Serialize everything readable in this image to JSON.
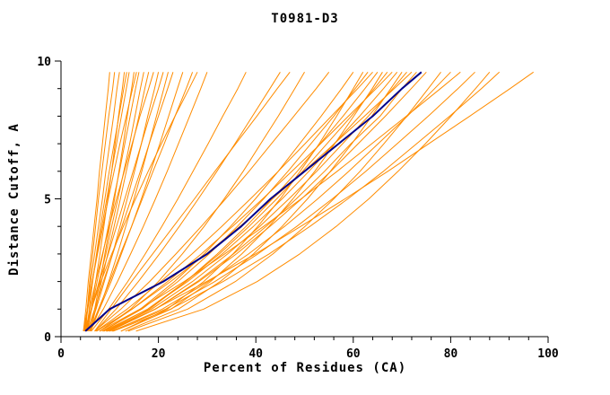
{
  "chart_data": {
    "type": "line",
    "title": "T0981-D3",
    "xlabel": "Percent of Residues (CA)",
    "ylabel": "Distance Cutoff, A",
    "xlim": [
      0,
      100
    ],
    "ylim": [
      0,
      10
    ],
    "x_ticks": [
      0,
      20,
      40,
      60,
      80,
      100
    ],
    "y_ticks": [
      0,
      5,
      10
    ],
    "x_minor_step": 4,
    "y_minor_step": 1,
    "grid": false,
    "legend": "none",
    "colors": {
      "model": "#ff8c00",
      "highlight": "#00008b",
      "axis": "#000000",
      "background": "#ffffff"
    },
    "y_grid": [
      0.2,
      1,
      2,
      3,
      4,
      5,
      6,
      7,
      8,
      9,
      9.6
    ],
    "highlight_series": {
      "name": "highlighted-model",
      "x": [
        5,
        10,
        21,
        30,
        37,
        43,
        50,
        57,
        64,
        70,
        74
      ]
    },
    "series": [
      {
        "x": [
          4.6,
          5.1,
          5.6,
          6.2,
          6.8,
          7.4,
          7.9,
          8.5,
          9.1,
          9.7,
          10
        ]
      },
      {
        "x": [
          5.1,
          5.4,
          5.9,
          6.5,
          7.1,
          7.7,
          8.4,
          9.1,
          9.8,
          10.6,
          11
        ]
      },
      {
        "x": [
          4.8,
          5.4,
          6.1,
          6.9,
          7.7,
          8.5,
          9.2,
          10,
          10.8,
          11.5,
          12
        ]
      },
      {
        "x": [
          5.3,
          6.2,
          7.1,
          8,
          8.8,
          9.6,
          10.4,
          11.1,
          11.8,
          12.6,
          13
        ]
      },
      {
        "x": [
          5.3,
          5.8,
          6.5,
          7.3,
          8.1,
          9,
          9.9,
          10.9,
          11.9,
          12.9,
          13.5
        ]
      },
      {
        "x": [
          4.6,
          5.4,
          6.4,
          7.4,
          8.4,
          9.4,
          10.4,
          11.4,
          12.4,
          13.4,
          14
        ]
      },
      {
        "x": [
          5.9,
          6.9,
          8,
          9,
          10,
          11,
          11.9,
          12.8,
          13.6,
          14.5,
          15
        ]
      },
      {
        "x": [
          4.9,
          5.5,
          6.4,
          7.5,
          8.6,
          9.7,
          10.9,
          12.1,
          13.4,
          14.7,
          15.5
        ]
      },
      {
        "x": [
          5.4,
          6.3,
          7.4,
          8.6,
          9.7,
          10.8,
          12,
          13.1,
          14.2,
          15.3,
          16
        ]
      },
      {
        "x": [
          5,
          6.3,
          7.8,
          9.2,
          10.4,
          11.7,
          12.9,
          14.1,
          15.2,
          16.3,
          17
        ]
      },
      {
        "x": [
          6.1,
          7.1,
          8.3,
          9.6,
          10.9,
          12.2,
          13.4,
          14.7,
          16,
          17.2,
          18
        ]
      },
      {
        "x": [
          5.1,
          5.9,
          7.1,
          8.5,
          9.9,
          11.4,
          13,
          14.6,
          16.2,
          18,
          19
        ]
      },
      {
        "x": [
          5.6,
          7.2,
          8.9,
          10.6,
          12.1,
          13.6,
          15.1,
          16.5,
          17.8,
          19.2,
          20
        ]
      },
      {
        "x": [
          4.8,
          6.2,
          7.9,
          9.7,
          11.4,
          13.1,
          14.8,
          16.5,
          18.2,
          20,
          21
        ]
      },
      {
        "x": [
          6.1,
          7.9,
          9.8,
          11.6,
          13.3,
          15,
          16.6,
          18.1,
          19.6,
          21.1,
          22
        ]
      },
      {
        "x": [
          5.4,
          6.9,
          8.7,
          10.6,
          12.5,
          14.4,
          16.3,
          18.1,
          20,
          21.9,
          23
        ]
      },
      {
        "x": [
          5.8,
          7.9,
          10.3,
          12.4,
          14.5,
          16.5,
          18.4,
          20.3,
          22.1,
          23.9,
          25
        ]
      },
      {
        "x": [
          5.9,
          7.7,
          10,
          12.2,
          14.5,
          16.7,
          18.9,
          21.2,
          23.4,
          25.7,
          27
        ]
      },
      {
        "x": [
          5.9,
          8.7,
          11.6,
          14.3,
          16.9,
          19.4,
          21.8,
          24.1,
          26.4,
          28.7,
          30
        ]
      },
      {
        "x": [
          4.8,
          6.2,
          8.2,
          10.4,
          12.8,
          15.3,
          17.9,
          20.6,
          23.4,
          26.3,
          28
        ]
      },
      {
        "x": [
          6.2,
          9.8,
          13.7,
          17.3,
          20.7,
          24,
          27.1,
          30.2,
          33.2,
          36.3,
          38
        ]
      },
      {
        "x": [
          7,
          11.3,
          15.9,
          20.2,
          24.3,
          28.2,
          32,
          35.7,
          39.3,
          42.9,
          45
        ]
      },
      {
        "x": [
          8,
          14.3,
          20,
          24.9,
          29.4,
          33.5,
          37.4,
          41,
          44.6,
          48,
          50
        ]
      },
      {
        "x": [
          6.9,
          10.3,
          14.5,
          18.8,
          23.1,
          27.4,
          31.6,
          35.9,
          40.2,
          44.4,
          47
        ]
      },
      {
        "x": [
          6.9,
          12.3,
          18.2,
          23.6,
          28.8,
          33.8,
          38.6,
          43.2,
          47.8,
          52.4,
          55
        ]
      },
      {
        "x": [
          8.7,
          16.3,
          23.3,
          29.4,
          34.8,
          39.9,
          44.6,
          49,
          53.4,
          57.6,
          60
        ]
      },
      {
        "x": [
          12.3,
          21.8,
          29.3,
          35.3,
          40.4,
          45,
          49.1,
          53,
          56.6,
          60,
          62
        ]
      },
      {
        "x": [
          8.4,
          16.6,
          24,
          30.4,
          36.2,
          41.6,
          46.6,
          51.3,
          56,
          60.4,
          63
        ]
      },
      {
        "x": [
          7.2,
          13.6,
          20.5,
          26.9,
          33,
          38.9,
          44.6,
          50.1,
          55.5,
          60.9,
          64
        ]
      },
      {
        "x": [
          10,
          18.2,
          25.6,
          32.1,
          38,
          43.4,
          48.5,
          53.2,
          57.9,
          62.4,
          65
        ]
      },
      {
        "x": [
          12.3,
          22.6,
          30.7,
          37.1,
          42.7,
          47.6,
          52.1,
          56.2,
          60.1,
          63.9,
          66
        ]
      },
      {
        "x": [
          9.2,
          17.8,
          25.6,
          32.5,
          38.6,
          44.3,
          49.6,
          54.6,
          59.6,
          64.3,
          67
        ]
      },
      {
        "x": [
          7.9,
          14.6,
          21.9,
          28.8,
          35.2,
          41.4,
          47.4,
          53.3,
          59,
          64.7,
          68
        ]
      },
      {
        "x": [
          8.8,
          17.8,
          26,
          33.1,
          39.5,
          45.4,
          50.9,
          56.1,
          61.3,
          66.2,
          69
        ]
      },
      {
        "x": [
          13.2,
          24.1,
          32.7,
          39.5,
          45.4,
          50.6,
          55.3,
          59.7,
          63.8,
          67.7,
          70
        ]
      },
      {
        "x": [
          9.4,
          18.6,
          27,
          34.2,
          40.8,
          46.8,
          52.5,
          57.8,
          63.1,
          68.1,
          71
        ]
      },
      {
        "x": [
          7.3,
          14.6,
          22.5,
          29.8,
          36.7,
          43.4,
          49.9,
          56.1,
          62.3,
          68.4,
          72
        ]
      },
      {
        "x": [
          10,
          19.4,
          28,
          35.4,
          42.1,
          48.3,
          54.1,
          59.5,
          65.5,
          70,
          73
        ]
      },
      {
        "x": [
          9.7,
          19.4,
          28.3,
          36,
          42.9,
          49.4,
          55.4,
          61,
          66.6,
          71.9,
          75
        ]
      },
      {
        "x": [
          13.8,
          26,
          35.8,
          43.5,
          50.1,
          56,
          61.4,
          66.3,
          71,
          75.4,
          78
        ]
      },
      {
        "x": [
          10.5,
          20.8,
          30.3,
          38.5,
          45.9,
          52.7,
          59.1,
          65.1,
          71.1,
          76.7,
          80
        ]
      },
      {
        "x": [
          7.9,
          16.2,
          25.3,
          33.6,
          41.6,
          49.3,
          56.7,
          63.8,
          70.9,
          77.9,
          82
        ]
      },
      {
        "x": [
          10.4,
          21.5,
          31.6,
          40.4,
          48.4,
          55.7,
          62.6,
          69,
          75.4,
          81.5,
          85
        ]
      },
      {
        "x": [
          15.4,
          29.3,
          40.3,
          49,
          56.5,
          63.2,
          69.2,
          74.8,
          80.1,
          85.1,
          88
        ]
      },
      {
        "x": [
          10.7,
          22.5,
          33.3,
          42.7,
          51.1,
          58.9,
          66.2,
          73,
          79.8,
          86.3,
          90
        ]
      },
      {
        "x": [
          9.4,
          19.3,
          29.9,
          39.9,
          49.2,
          58.3,
          67.1,
          75.5,
          83.9,
          92.2,
          97
        ]
      }
    ]
  }
}
